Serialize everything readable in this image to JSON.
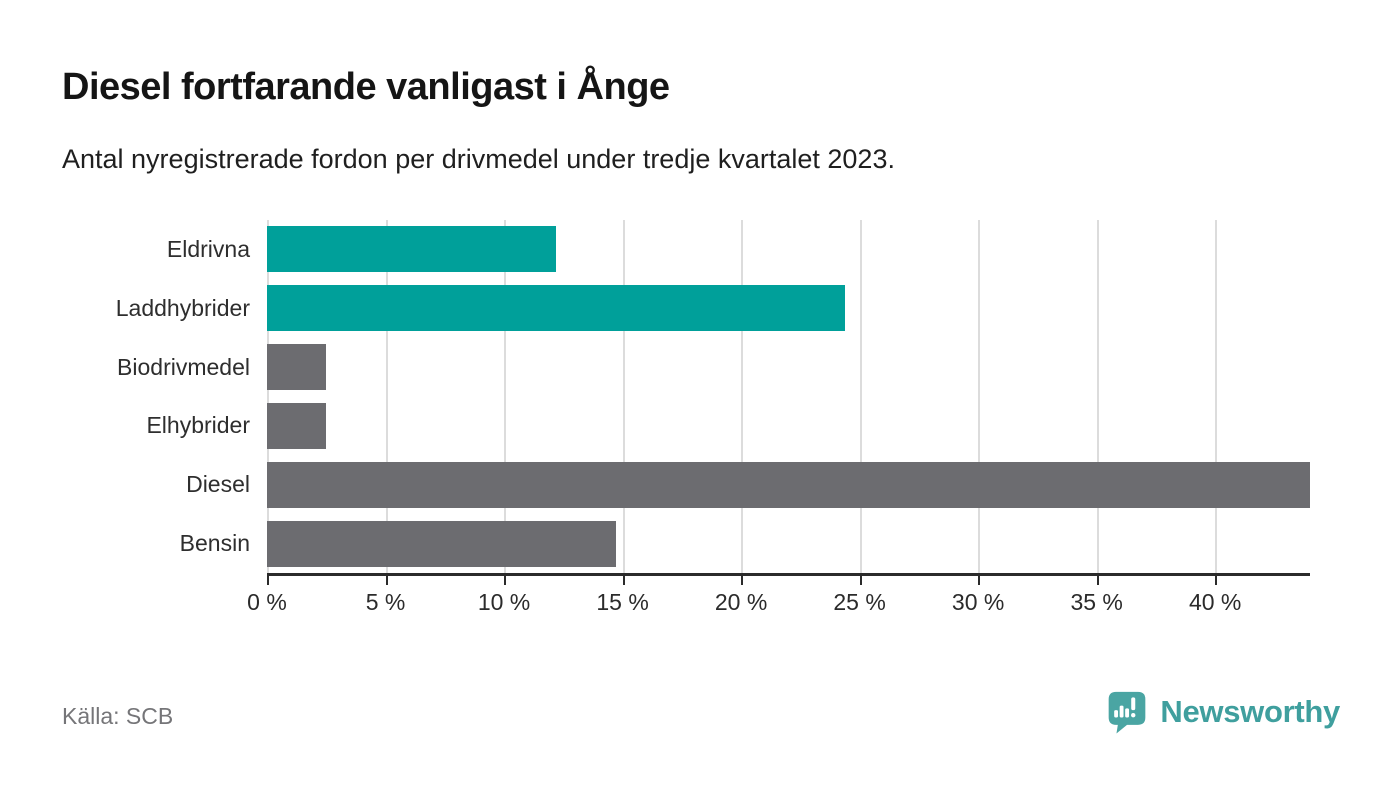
{
  "header": {
    "title": "Diesel fortfarande vanligast i Ånge",
    "subtitle": "Antal nyregistrerade fordon per drivmedel under tredje kvartalet 2023."
  },
  "chart_data": {
    "type": "bar",
    "orientation": "horizontal",
    "title": "Diesel fortfarande vanligast i Ånge",
    "subtitle": "Antal nyregistrerade fordon per drivmedel under tredje kvartalet 2023.",
    "categories": [
      "Eldrivna",
      "Laddhybrider",
      "Biodrivmedel",
      "Elhybrider",
      "Diesel",
      "Bensin"
    ],
    "values": [
      12.2,
      24.4,
      2.5,
      2.5,
      44,
      14.7
    ],
    "unit": "%",
    "bar_colors": [
      "#00a09a",
      "#00a09a",
      "#6c6c70",
      "#6c6c70",
      "#6c6c70",
      "#6c6c70"
    ],
    "highlight_color": "#00a09a",
    "base_color": "#6c6c70",
    "xlim": [
      0,
      44
    ],
    "x_ticks": [
      0,
      5,
      10,
      15,
      20,
      25,
      30,
      35,
      40
    ],
    "x_tick_labels": [
      "0 %",
      "5 %",
      "10 %",
      "15 %",
      "20 %",
      "25 %",
      "30 %",
      "35 %",
      "40 %"
    ],
    "grid": "vertical",
    "gridline_color": "#dcdcdc",
    "axis_color": "#2b2b2b",
    "legend": "none"
  },
  "footer": {
    "source": "Källa: SCB",
    "brand": "Newsworthy",
    "brand_color": "#3f9f9e"
  }
}
